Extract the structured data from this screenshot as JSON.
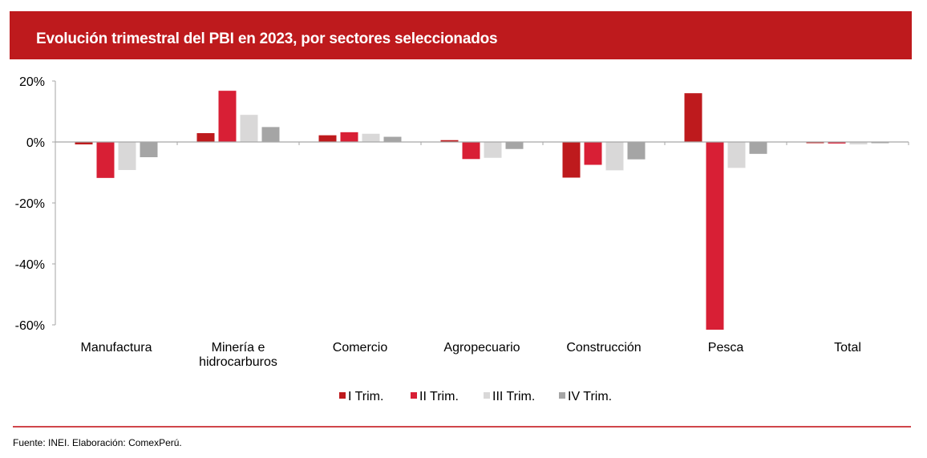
{
  "header": {
    "title": "Evolución trimestral del PBI en 2023, por sectores seleccionados"
  },
  "footer": {
    "source": "Fuente: INEI. Elaboración: ComexPerú."
  },
  "colors": {
    "banner": "#be1a1d",
    "footer_line": "#d0464b"
  },
  "chart_data": {
    "type": "bar",
    "title": "Evolución trimestral del PBI en 2023, por sectores seleccionados",
    "xlabel": "",
    "ylabel": "",
    "ylim": [
      -60,
      20
    ],
    "yticks": [
      20,
      0,
      -20,
      -40,
      -60
    ],
    "ytick_labels": [
      "20%",
      "0%",
      "-20%",
      "-40%",
      "-60%"
    ],
    "grid": false,
    "legend_position": "bottom",
    "categories": [
      [
        "Manufactura"
      ],
      [
        "Minería e",
        "hidrocarburos"
      ],
      [
        "Comercio"
      ],
      [
        "Agropecuario"
      ],
      [
        "Construcción"
      ],
      [
        "Pesca"
      ],
      [
        "Total"
      ]
    ],
    "series": [
      {
        "name": "I Trim.",
        "color": "#be1a1d",
        "values": [
          -0.8,
          2.9,
          2.2,
          0.6,
          -11.7,
          16.0,
          -0.4
        ]
      },
      {
        "name": "II Trim.",
        "color": "#d81f35",
        "values": [
          -11.8,
          16.8,
          3.2,
          -5.6,
          -7.5,
          -61.6,
          -0.5
        ]
      },
      {
        "name": "III Trim.",
        "color": "#d9d8d8",
        "values": [
          -9.2,
          8.9,
          2.7,
          -5.2,
          -9.3,
          -8.5,
          -0.8
        ]
      },
      {
        "name": "IV Trim.",
        "color": "#a5a5a5",
        "values": [
          -5.0,
          4.9,
          1.7,
          -2.3,
          -5.7,
          -3.9,
          -0.4
        ]
      }
    ]
  }
}
